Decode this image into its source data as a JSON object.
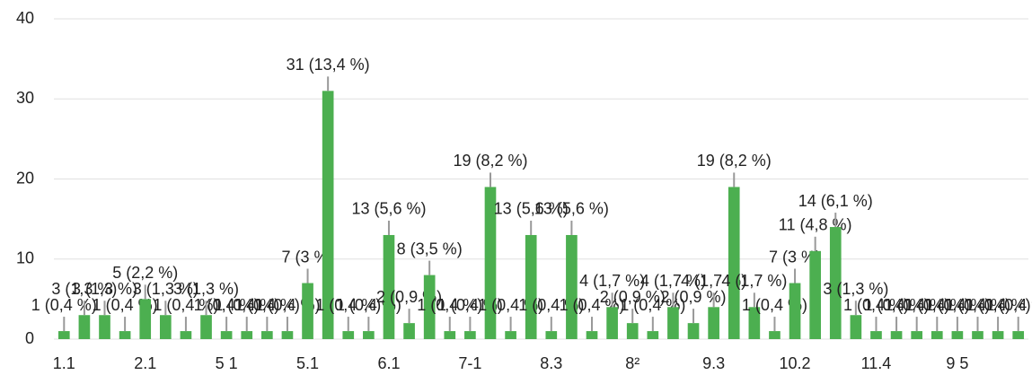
{
  "chart_data": {
    "type": "bar",
    "categories": [
      "1.1",
      null,
      null,
      null,
      "2.1",
      null,
      null,
      null,
      "5 1",
      null,
      null,
      null,
      "5.1",
      null,
      null,
      null,
      "6.1",
      null,
      null,
      null,
      "7-1",
      null,
      null,
      null,
      "8.3",
      null,
      null,
      null,
      "8²",
      null,
      null,
      null,
      "9.3",
      null,
      null,
      null,
      "10.2",
      null,
      null,
      null,
      "11.4",
      null,
      null,
      null,
      "9 5",
      null,
      null,
      null
    ],
    "values": [
      1,
      3,
      3,
      1,
      5,
      3,
      1,
      3,
      1,
      1,
      1,
      1,
      7,
      31,
      1,
      1,
      13,
      2,
      8,
      1,
      1,
      19,
      1,
      13,
      1,
      13,
      1,
      4,
      2,
      1,
      4,
      2,
      4,
      19,
      4,
      1,
      7,
      11,
      14,
      3,
      1,
      1,
      1,
      1,
      1,
      1,
      1,
      1
    ],
    "value_labels": [
      "1 (0,4 %)",
      "3 (1,3 %)",
      "3 (1,3 %)",
      "1 (0,4 %)",
      "5 (2,2 %)",
      "3 (1,3 %)",
      "1 (0,4 %)",
      "3 (1,3 %)",
      "1 (0,4 %)",
      "1 (0,4 %)",
      "1 (0,4 %)",
      "1 (0,4 %)",
      "7 (3 %)",
      "31 (13,4 %)",
      "1 (0,4 %)",
      "1 (0,4 %)",
      "13 (5,6 %)",
      "2 (0,9 %)",
      "8 (3,5 %)",
      "1 (0,4 %)",
      "1 (0,4 %)",
      "19 (8,2 %)",
      "1 (0,4 %)",
      "13 (5,6 %)",
      "1 (0,4 %)",
      "13 (5,6 %)",
      "1 (0,4 %)",
      "4 (1,7 %)",
      "2 (0,9 %)",
      "1 (0,4 %)",
      "4 (1,7 %)",
      "2 (0,9 %)",
      "4 (1,7 %)",
      "19 (8,2 %)",
      "4 (1,7 %)",
      "1 (0,4 %)",
      "7 (3 %)",
      "11 (4,8 %)",
      "14 (6,1 %)",
      "3 (1,3 %)",
      "1 (0,4 %)",
      "1 (0,4 %)",
      "1 (0,4 %)",
      "1 (0,4 %)",
      "1 (0,4 %)",
      "1 (0,4 %)",
      "1 (0,4 %)",
      "1 (0,4 %)"
    ],
    "color": "#4caf50",
    "ylim": [
      0,
      40
    ],
    "yticks": [
      0,
      10,
      20,
      30,
      40
    ],
    "grid": true
  }
}
